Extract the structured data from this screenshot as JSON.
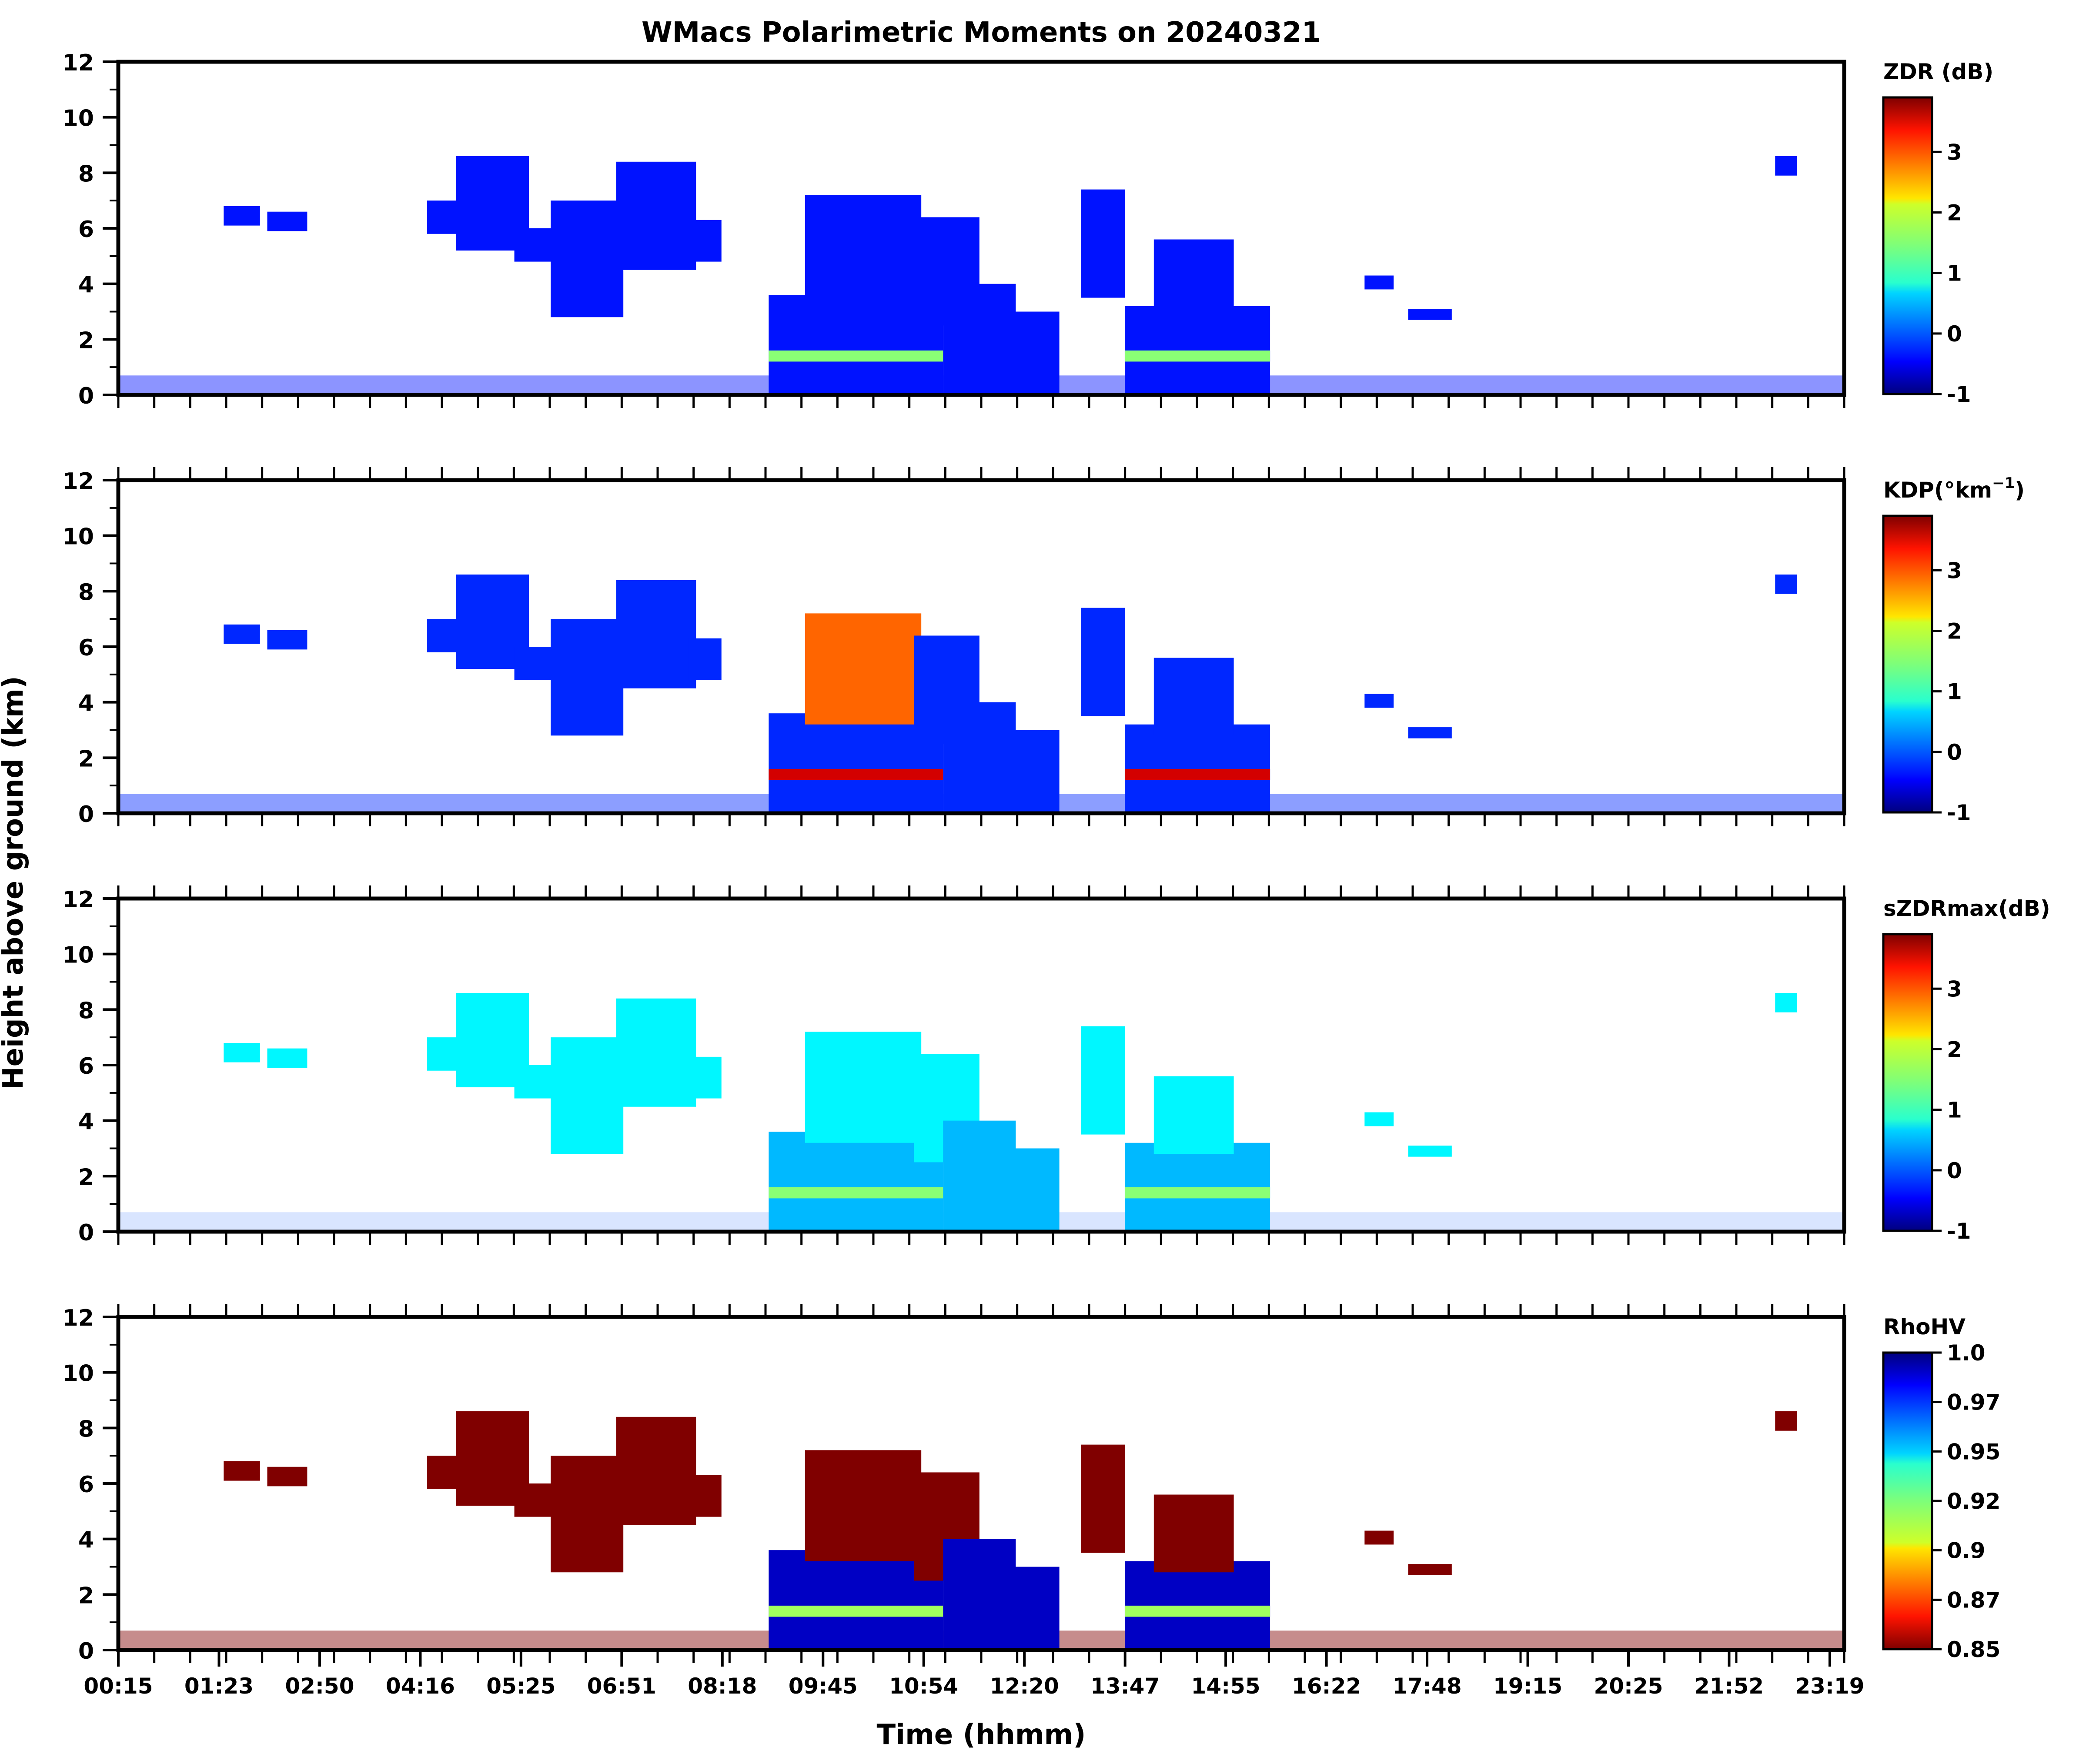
{
  "figure": {
    "title": "WMacs Polarimetric Moments on 20240321",
    "shared_ylabel": "Height above ground (km)",
    "shared_xlabel": "Time (hhmm)"
  },
  "chart_data": [
    {
      "type": "heatmap",
      "id": "zdr",
      "colorbar_label": "ZDR (dB)",
      "colorbar_ticks": [
        "3",
        "2",
        "1",
        "0",
        "-1"
      ],
      "colorbar_tick_values": [
        3,
        2,
        1,
        0,
        -1
      ],
      "colorbar_range": [
        -1,
        3.9
      ],
      "colormap": "jet",
      "yticks": [
        "12",
        "10",
        "8",
        "6",
        "4",
        "2",
        "0"
      ],
      "ylim": [
        0,
        12
      ],
      "xlim_hours": [
        0.25,
        24.0
      ],
      "dominant_value_clouds": -0.3,
      "bright_band_value": 1.0
    },
    {
      "type": "heatmap",
      "id": "kdp",
      "colorbar_label": "KDP(°km",
      "colorbar_label_sup": "−1",
      "colorbar_label_tail": ")",
      "colorbar_ticks": [
        "3",
        "2",
        "1",
        "0",
        "-1"
      ],
      "colorbar_tick_values": [
        3,
        2,
        1,
        0,
        -1
      ],
      "colorbar_range": [
        -1,
        3.9
      ],
      "colormap": "jet",
      "yticks": [
        "12",
        "10",
        "8",
        "6",
        "4",
        "2",
        "0"
      ],
      "ylim": [
        0,
        12
      ],
      "xlim_hours": [
        0.25,
        24.0
      ],
      "dominant_value_clouds": -0.2
    },
    {
      "type": "heatmap",
      "id": "szdrmax",
      "colorbar_label": "sZDRmax(dB)",
      "colorbar_ticks": [
        "3",
        "2",
        "1",
        "0",
        "-1"
      ],
      "colorbar_tick_values": [
        3,
        2,
        1,
        0,
        -1
      ],
      "colorbar_range": [
        -1,
        3.9
      ],
      "colormap": "jet",
      "yticks": [
        "12",
        "10",
        "8",
        "6",
        "4",
        "2",
        "0"
      ],
      "ylim": [
        0,
        12
      ],
      "xlim_hours": [
        0.25,
        24.0
      ],
      "dominant_value_clouds": 0.8
    },
    {
      "type": "heatmap",
      "id": "rhohv",
      "colorbar_label": "RhoHV",
      "colorbar_ticks": [
        "1.0",
        "0.97",
        "0.95",
        "0.92",
        "0.9",
        "0.87",
        "0.85"
      ],
      "colorbar_tick_values": [
        1.0,
        0.97,
        0.95,
        0.92,
        0.9,
        0.87,
        0.85
      ],
      "colorbar_range": [
        0.85,
        1.0
      ],
      "colormap": "jet_r",
      "yticks": [
        "12",
        "10",
        "8",
        "6",
        "4",
        "2",
        "0"
      ],
      "ylim": [
        0,
        12
      ],
      "xlim_hours": [
        0.25,
        24.0
      ],
      "dominant_value_clouds": 0.85,
      "dominant_value_rain": 0.99
    }
  ],
  "xticks": [
    "00:15",
    "01:23",
    "02:50",
    "04:16",
    "05:25",
    "06:51",
    "08:18",
    "09:45",
    "10:54",
    "12:20",
    "13:47",
    "14:55",
    "16:22",
    "17:48",
    "19:15",
    "20:25",
    "21:52",
    "23:19"
  ],
  "xtick_hours": [
    0.25,
    1.383,
    2.833,
    4.267,
    5.417,
    6.85,
    8.3,
    9.75,
    10.9,
    12.333,
    13.783,
    14.917,
    16.367,
    17.8,
    19.25,
    20.417,
    21.867,
    23.317
  ],
  "echoes": [
    {
      "t0": 1.7,
      "t1": 2.2,
      "h0": 6.1,
      "h1": 6.8
    },
    {
      "t0": 2.3,
      "t1": 2.85,
      "h0": 5.9,
      "h1": 6.6
    },
    {
      "t0": 4.5,
      "t1": 5.0,
      "h0": 5.8,
      "h1": 7.0
    },
    {
      "t0": 4.9,
      "t1": 5.9,
      "h0": 5.2,
      "h1": 8.6
    },
    {
      "t0": 5.7,
      "t1": 6.3,
      "h0": 4.8,
      "h1": 6.0
    },
    {
      "t0": 6.2,
      "t1": 7.2,
      "h0": 2.8,
      "h1": 7.0
    },
    {
      "t0": 7.1,
      "t1": 8.2,
      "h0": 4.5,
      "h1": 8.4
    },
    {
      "t0": 8.1,
      "t1": 8.55,
      "h0": 4.8,
      "h1": 6.3
    },
    {
      "t0": 9.2,
      "t1": 11.6,
      "h0": 0.0,
      "h1": 3.6
    },
    {
      "t0": 9.7,
      "t1": 11.3,
      "h0": 3.2,
      "h1": 7.2
    },
    {
      "t0": 11.2,
      "t1": 12.1,
      "h0": 2.5,
      "h1": 6.4
    },
    {
      "t0": 11.6,
      "t1": 12.6,
      "h0": 0.0,
      "h1": 4.0
    },
    {
      "t0": 12.4,
      "t1": 13.2,
      "h0": 0.0,
      "h1": 3.0
    },
    {
      "t0": 13.5,
      "t1": 14.1,
      "h0": 3.5,
      "h1": 7.4
    },
    {
      "t0": 14.1,
      "t1": 16.1,
      "h0": 0.0,
      "h1": 3.2
    },
    {
      "t0": 14.5,
      "t1": 15.6,
      "h0": 2.8,
      "h1": 5.6
    },
    {
      "t0": 17.4,
      "t1": 17.8,
      "h0": 3.8,
      "h1": 4.3
    },
    {
      "t0": 18.0,
      "t1": 18.6,
      "h0": 2.7,
      "h1": 3.1
    },
    {
      "t0": 23.05,
      "t1": 23.35,
      "h0": 7.9,
      "h1": 8.6
    }
  ]
}
